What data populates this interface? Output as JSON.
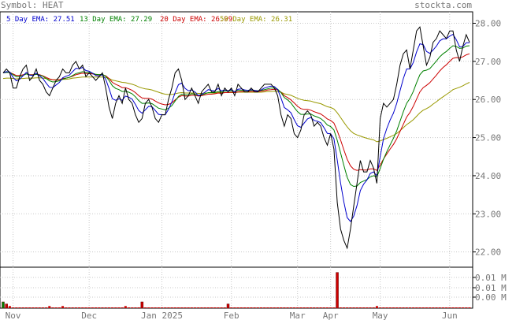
{
  "header": {
    "symbol_label": "Symbol: HEAT",
    "site": "stockta.com"
  },
  "legend": [
    {
      "text": "5 Day EMA: 27.51",
      "color": "#0000cc"
    },
    {
      "text": "13 Day EMA: 27.29",
      "color": "#008000"
    },
    {
      "text": "20 Day EMA: 26.99",
      "color": "#cc0000"
    },
    {
      "text": "50 Day EMA: 26.31",
      "color": "#999900"
    }
  ],
  "chart_data": {
    "type": "line",
    "ylim": [
      21.6,
      28.3
    ],
    "y_ticks": [
      "22.00",
      "23.00",
      "24.00",
      "25.00",
      "26.00",
      "27.00",
      "28.00"
    ],
    "volume_ticks": [
      "0.01 M",
      "0.01 M",
      "0.00 M"
    ],
    "x_ticks": [
      "Nov",
      "Dec",
      "Jan 2025",
      "Feb",
      "Mar",
      "Apr",
      "May",
      "Jun"
    ],
    "x_tick_index": [
      3,
      26,
      48,
      69,
      89,
      99,
      114,
      135
    ],
    "grid": true,
    "series": [
      {
        "key": "price",
        "color": "#000000",
        "values": [
          26.7,
          26.8,
          26.7,
          26.3,
          26.3,
          26.6,
          26.8,
          26.9,
          26.5,
          26.6,
          26.8,
          26.5,
          26.4,
          26.2,
          26.1,
          26.3,
          26.5,
          26.6,
          26.8,
          26.7,
          26.7,
          26.9,
          27.0,
          26.8,
          26.9,
          26.6,
          26.7,
          26.6,
          26.5,
          26.6,
          26.7,
          26.3,
          25.8,
          25.5,
          25.9,
          26.1,
          25.9,
          26.3,
          26.0,
          25.9,
          25.6,
          25.4,
          25.5,
          25.9,
          26.0,
          25.8,
          25.5,
          25.4,
          25.6,
          25.6,
          26.0,
          26.3,
          26.7,
          26.8,
          26.5,
          26.0,
          26.1,
          26.3,
          26.1,
          25.9,
          26.2,
          26.3,
          26.4,
          26.2,
          26.2,
          26.4,
          26.1,
          26.3,
          26.2,
          26.3,
          26.1,
          26.4,
          26.3,
          26.2,
          26.2,
          26.3,
          26.2,
          26.2,
          26.3,
          26.4,
          26.4,
          26.4,
          26.3,
          26.1,
          25.6,
          25.3,
          25.6,
          25.5,
          25.1,
          25.0,
          25.2,
          25.6,
          25.7,
          25.6,
          25.3,
          25.4,
          25.3,
          25.0,
          24.8,
          25.1,
          24.7,
          23.3,
          22.6,
          22.3,
          22.1,
          22.6,
          23.2,
          23.8,
          24.4,
          24.1,
          24.1,
          24.4,
          24.2,
          23.8,
          25.5,
          25.9,
          25.8,
          25.9,
          26.0,
          26.4,
          26.9,
          27.2,
          27.3,
          26.8,
          27.3,
          27.8,
          27.9,
          27.4,
          26.9,
          27.1,
          27.5,
          27.6,
          27.8,
          27.7,
          27.6,
          27.8,
          27.8,
          27.3,
          27.0,
          27.4,
          27.7,
          27.5
        ]
      },
      {
        "key": "ema5",
        "color": "#0000cc",
        "values": [
          26.7,
          26.73,
          26.72,
          26.58,
          26.49,
          26.53,
          26.62,
          26.71,
          26.64,
          26.63,
          26.69,
          26.62,
          26.55,
          26.43,
          26.32,
          26.31,
          26.38,
          26.45,
          26.57,
          26.61,
          26.64,
          26.73,
          26.82,
          26.81,
          26.84,
          26.76,
          26.74,
          26.69,
          26.63,
          26.62,
          26.65,
          26.53,
          26.29,
          26.02,
          25.98,
          26.02,
          25.98,
          26.09,
          26.06,
          26.01,
          25.87,
          25.71,
          25.64,
          25.73,
          25.82,
          25.81,
          25.71,
          25.61,
          25.6,
          25.6,
          25.74,
          25.93,
          26.18,
          26.39,
          26.43,
          26.29,
          26.23,
          26.25,
          26.2,
          26.1,
          26.13,
          26.19,
          26.26,
          26.24,
          26.23,
          26.29,
          26.23,
          26.25,
          26.23,
          26.26,
          26.2,
          26.27,
          26.28,
          26.25,
          26.24,
          26.26,
          26.24,
          26.22,
          26.25,
          26.3,
          26.33,
          26.35,
          26.34,
          26.26,
          26.04,
          25.79,
          25.73,
          25.65,
          25.47,
          25.31,
          25.27,
          25.38,
          25.49,
          25.53,
          25.45,
          25.43,
          25.39,
          25.26,
          25.11,
          25.1,
          24.97,
          24.41,
          23.81,
          23.31,
          22.9,
          22.8,
          22.94,
          23.22,
          23.61,
          23.78,
          23.89,
          24.06,
          24.1,
          24.0,
          24.5,
          24.97,
          25.24,
          25.46,
          25.64,
          25.9,
          26.23,
          26.55,
          26.8,
          26.8,
          26.97,
          27.25,
          27.46,
          27.44,
          27.26,
          27.21,
          27.3,
          27.4,
          27.54,
          27.59,
          27.59,
          27.66,
          27.71,
          27.57,
          27.38,
          27.39,
          27.49,
          27.49
        ]
      },
      {
        "key": "ema13",
        "color": "#008000",
        "values": [
          26.7,
          26.71,
          26.71,
          26.65,
          26.6,
          26.6,
          26.63,
          26.67,
          26.64,
          26.64,
          26.66,
          26.64,
          26.61,
          26.55,
          26.49,
          26.46,
          26.47,
          26.49,
          26.53,
          26.56,
          26.58,
          26.63,
          26.68,
          26.7,
          26.73,
          26.71,
          26.71,
          26.69,
          26.66,
          26.65,
          26.66,
          26.61,
          26.5,
          26.36,
          26.29,
          26.26,
          26.21,
          26.22,
          26.19,
          26.15,
          26.07,
          25.97,
          25.9,
          25.9,
          25.91,
          25.89,
          25.83,
          25.77,
          25.75,
          25.73,
          25.77,
          25.84,
          25.96,
          26.08,
          26.14,
          26.12,
          26.12,
          26.15,
          26.14,
          26.11,
          26.12,
          26.15,
          26.18,
          26.18,
          26.18,
          26.21,
          26.2,
          26.22,
          26.22,
          26.23,
          26.21,
          26.24,
          26.24,
          26.24,
          26.23,
          26.24,
          26.24,
          26.23,
          26.24,
          26.26,
          26.28,
          26.3,
          26.3,
          26.27,
          26.18,
          26.05,
          25.99,
          25.91,
          25.79,
          25.68,
          25.61,
          25.61,
          25.62,
          25.62,
          25.57,
          25.54,
          25.5,
          25.43,
          25.33,
          25.29,
          25.2,
          24.93,
          24.6,
          24.27,
          23.96,
          23.77,
          23.72,
          23.73,
          23.82,
          23.86,
          23.9,
          23.97,
          24.0,
          23.97,
          24.19,
          24.43,
          24.63,
          24.81,
          24.98,
          25.18,
          25.43,
          25.68,
          25.9,
          26.03,
          26.21,
          26.44,
          26.65,
          26.75,
          26.77,
          26.81,
          26.91,
          27.01,
          27.12,
          27.2,
          27.26,
          27.34,
          27.41,
          27.39,
          27.34,
          27.35,
          27.4,
          27.41
        ]
      },
      {
        "key": "ema20",
        "color": "#cc0000",
        "values": [
          26.7,
          26.71,
          26.71,
          26.67,
          26.63,
          26.63,
          26.65,
          26.67,
          26.65,
          26.65,
          26.66,
          26.65,
          26.62,
          26.58,
          26.54,
          26.52,
          26.51,
          26.52,
          26.55,
          26.56,
          26.58,
          26.61,
          26.65,
          26.67,
          26.69,
          26.68,
          26.68,
          26.67,
          26.65,
          26.65,
          26.65,
          26.62,
          26.55,
          26.45,
          26.4,
          26.36,
          26.31,
          26.31,
          26.28,
          26.24,
          26.18,
          26.1,
          26.04,
          26.03,
          26.03,
          26.01,
          25.96,
          25.91,
          25.88,
          25.86,
          25.87,
          25.91,
          25.99,
          26.06,
          26.1,
          26.09,
          26.09,
          26.11,
          26.11,
          26.09,
          26.1,
          26.12,
          26.14,
          26.14,
          26.15,
          26.17,
          26.16,
          26.18,
          26.18,
          26.19,
          26.18,
          26.2,
          26.21,
          26.21,
          26.2,
          26.21,
          26.21,
          26.21,
          26.22,
          26.23,
          26.25,
          26.26,
          26.27,
          26.25,
          26.19,
          26.1,
          26.05,
          25.99,
          25.91,
          25.82,
          25.76,
          25.74,
          25.74,
          25.72,
          25.68,
          25.65,
          25.62,
          25.56,
          25.49,
          25.45,
          25.38,
          25.18,
          24.94,
          24.68,
          24.43,
          24.26,
          24.17,
          24.14,
          24.16,
          24.15,
          24.15,
          24.18,
          24.18,
          24.14,
          24.28,
          24.44,
          24.57,
          24.7,
          24.82,
          24.97,
          25.16,
          25.35,
          25.54,
          25.66,
          25.82,
          26.01,
          26.2,
          26.31,
          26.37,
          26.44,
          26.54,
          26.64,
          26.75,
          26.84,
          26.91,
          27.0,
          27.08,
          27.1,
          27.09,
          27.12,
          27.17,
          27.2
        ]
      },
      {
        "key": "ema50",
        "color": "#999900",
        "values": [
          26.55,
          26.56,
          26.56,
          26.55,
          26.54,
          26.55,
          26.55,
          26.56,
          26.56,
          26.56,
          26.57,
          26.57,
          26.56,
          26.55,
          26.53,
          26.52,
          26.52,
          26.52,
          26.53,
          26.53,
          26.54,
          26.56,
          26.57,
          26.58,
          26.59,
          26.59,
          26.59,
          26.59,
          26.59,
          26.59,
          26.59,
          26.58,
          26.55,
          26.51,
          26.49,
          26.47,
          26.45,
          26.44,
          26.42,
          26.4,
          26.37,
          26.33,
          26.3,
          26.28,
          26.27,
          26.25,
          26.22,
          26.19,
          26.16,
          26.14,
          26.13,
          26.13,
          26.15,
          26.17,
          26.18,
          26.17,
          26.17,
          26.17,
          26.17,
          26.16,
          26.16,
          26.17,
          26.17,
          26.17,
          26.17,
          26.18,
          26.18,
          26.18,
          26.18,
          26.18,
          26.18,
          26.19,
          26.19,
          26.19,
          26.19,
          26.19,
          26.19,
          26.19,
          26.19,
          26.2,
          26.21,
          26.21,
          26.22,
          26.21,
          26.19,
          26.15,
          26.13,
          26.11,
          26.07,
          26.03,
          26.0,
          25.98,
          25.97,
          25.96,
          25.93,
          25.91,
          25.89,
          25.85,
          25.81,
          25.79,
          25.75,
          25.65,
          25.53,
          25.4,
          25.28,
          25.18,
          25.11,
          25.07,
          25.04,
          25.01,
          24.98,
          24.96,
          24.94,
          24.89,
          24.91,
          24.95,
          24.98,
          25.02,
          25.06,
          25.11,
          25.18,
          25.26,
          25.34,
          25.4,
          25.47,
          25.56,
          25.65,
          25.72,
          25.76,
          25.81,
          25.88,
          25.94,
          26.01,
          26.07,
          26.13,
          26.19,
          26.26,
          26.29,
          26.32,
          26.36,
          26.41,
          26.45
        ]
      }
    ],
    "volume": [
      0.003,
      0.002,
      0.001,
      0.0,
      0.0,
      0.0,
      0.0,
      0.0,
      0.0,
      0.0,
      0.0,
      0.0,
      0.0,
      0.0,
      0.001,
      0.0,
      0.0,
      0.0,
      0.001,
      0.0,
      0.0,
      0.0,
      0.0,
      0.0,
      0.0,
      0.0,
      0.0,
      0.0,
      0.0,
      0.0,
      0.0,
      0.0,
      0.0,
      0.0,
      0.0,
      0.0,
      0.0,
      0.001,
      0.0,
      0.0,
      0.0,
      0.0,
      0.003,
      0.0,
      0.0,
      0.0,
      0.0,
      0.0,
      0.0,
      0.0,
      0.0,
      0.0,
      0.0,
      0.0,
      0.0,
      0.0,
      0.0,
      0.0,
      0.0,
      0.0,
      0.0,
      0.0,
      0.0,
      0.0,
      0.0,
      0.0,
      0.0,
      0.0,
      0.002,
      0.0,
      0.0,
      0.0,
      0.0,
      0.0,
      0.0,
      0.0,
      0.0,
      0.0,
      0.0,
      0.0,
      0.0,
      0.0,
      0.0,
      0.0,
      0.0,
      0.0,
      0.0,
      0.0,
      0.0,
      0.0,
      0.0,
      0.0,
      0.0,
      0.0,
      0.0,
      0.0,
      0.0,
      0.0,
      0.0,
      0.0,
      0.0,
      0.017,
      0.0,
      0.0,
      0.0,
      0.0,
      0.0,
      0.0,
      0.0,
      0.0,
      0.0,
      0.0,
      0.0,
      0.001,
      0.0,
      0.0,
      0.0,
      0.0,
      0.0,
      0.0,
      0.0,
      0.0,
      0.0,
      0.0,
      0.0,
      0.0,
      0.0,
      0.0,
      0.0,
      0.0,
      0.0,
      0.0,
      0.0,
      0.0,
      0.0,
      0.0,
      0.0,
      0.0,
      0.0,
      0.0,
      0.0,
      0.0
    ],
    "volume_ylim": [
      0,
      0.018
    ],
    "volume_color": "#cc0000"
  }
}
